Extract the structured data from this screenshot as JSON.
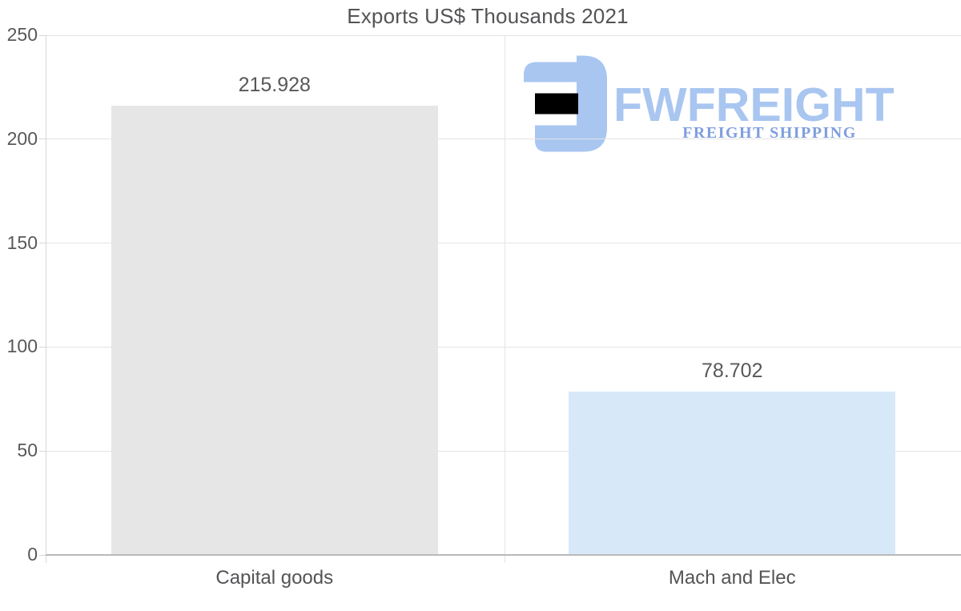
{
  "chart_data": {
    "type": "bar",
    "title": "Exports US$ Thousands 2021",
    "categories": [
      "Capital goods",
      "Mach and Elec"
    ],
    "values": [
      215.928,
      78.702
    ],
    "value_labels": [
      "215.928",
      "78.702"
    ],
    "bar_colors": [
      "#e6e6e6",
      "#d7e8f9"
    ],
    "yticks": [
      0,
      50,
      100,
      150,
      200,
      250
    ],
    "ytick_labels": [
      "0",
      "50",
      "100",
      "150",
      "200",
      "250"
    ],
    "ylim": [
      0,
      250
    ],
    "xlabel": "",
    "ylabel": "",
    "grid": true,
    "legend": "none"
  },
  "watermark": {
    "icon": "fwfreight-logo-icon",
    "name": "FWFREIGHT",
    "tagline": "FREIGHT SHIPPING",
    "color_main": "#a9c6f1",
    "color_tagline": "#7f9edd"
  },
  "colors": {
    "text_gray": "#58585b",
    "gridline": "#e4e4e4",
    "axis_line": "#d6d6d6",
    "baseline": "#b9b9b9"
  }
}
